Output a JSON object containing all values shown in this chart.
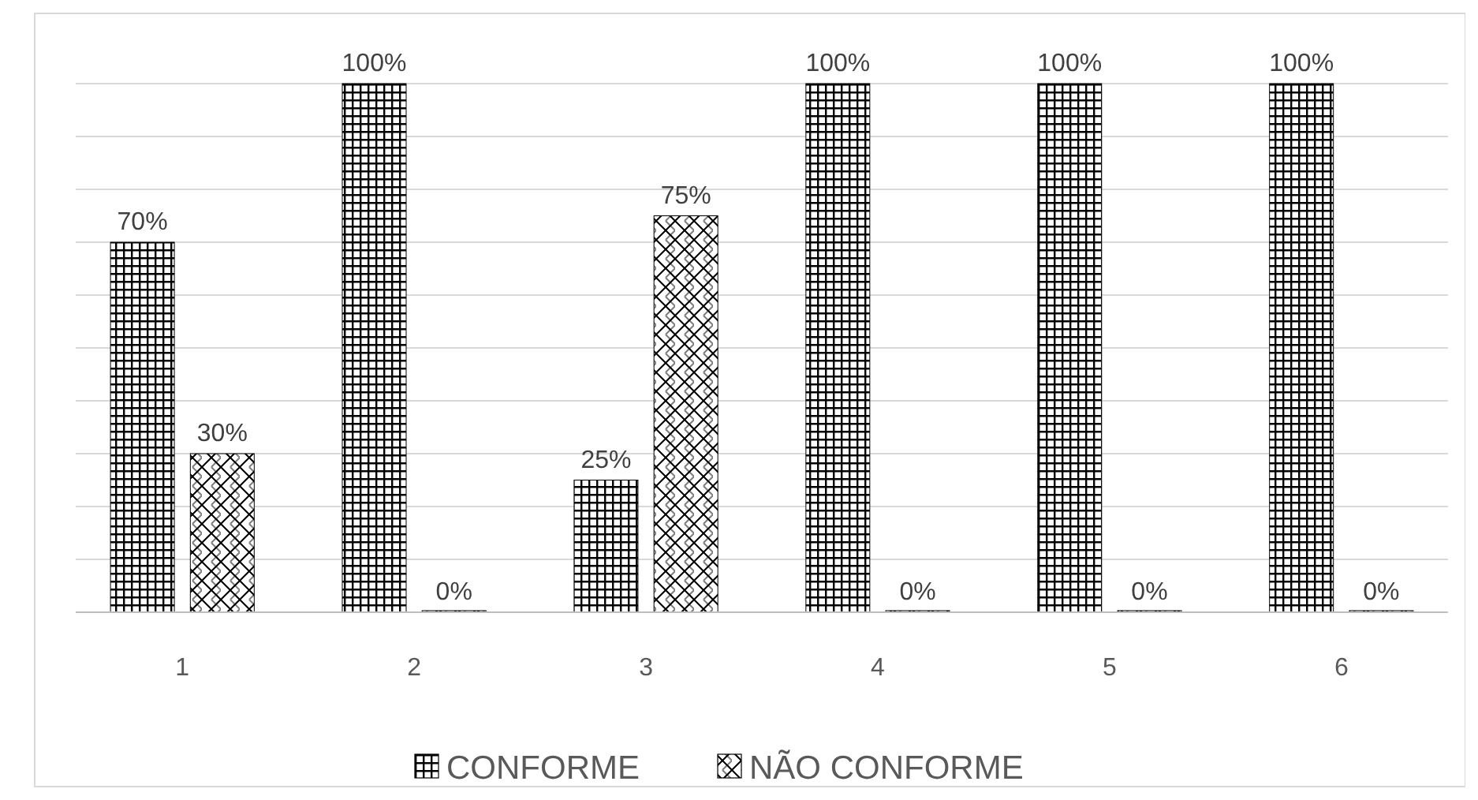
{
  "chart_data": {
    "type": "bar",
    "categories": [
      "1",
      "2",
      "3",
      "4",
      "5",
      "6"
    ],
    "series": [
      {
        "name": "CONFORME",
        "color": "#000000",
        "values": [
          70,
          100,
          25,
          100,
          100,
          100
        ],
        "value_labels": [
          "70%",
          "100%",
          "25%",
          "100%",
          "100%",
          "100%"
        ]
      },
      {
        "name": "NÃO CONFORME",
        "color": "#000000",
        "values": [
          30,
          0,
          75,
          0,
          0,
          0
        ],
        "value_labels": [
          "30%",
          "0%",
          "75%",
          "0%",
          "0%",
          "0%"
        ]
      }
    ],
    "ylim": [
      0,
      100
    ],
    "yticks": [
      {
        "value": 0,
        "label": null
      },
      {
        "value": 10,
        "label": null
      },
      {
        "value": 20,
        "label": null
      },
      {
        "value": 30,
        "label": null
      },
      {
        "value": 40,
        "label": null
      },
      {
        "value": 50,
        "label": null
      },
      {
        "value": 60,
        "label": null
      },
      {
        "value": 70,
        "label": null
      },
      {
        "value": 80,
        "label": null
      },
      {
        "value": 90,
        "label": null
      },
      {
        "value": 100,
        "label": null
      }
    ],
    "grid": "y",
    "tick_labels": "x",
    "legend": "bottom"
  }
}
